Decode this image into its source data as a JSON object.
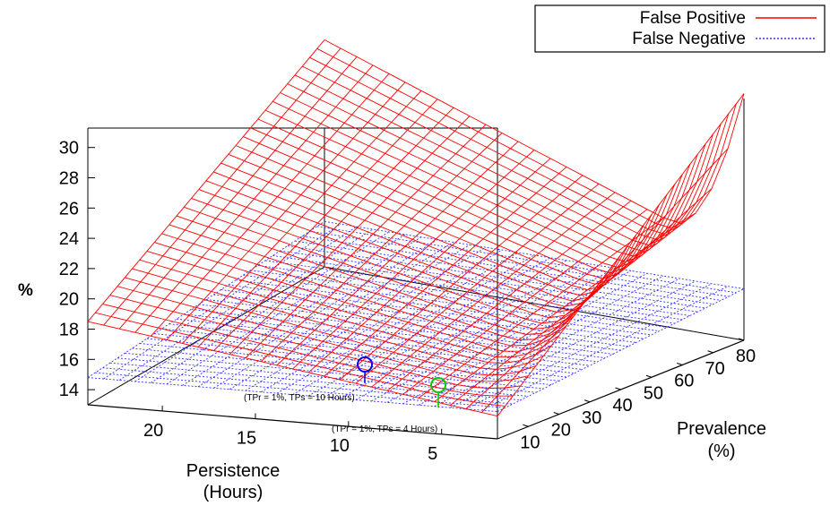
{
  "chart_data": {
    "type": "surface",
    "z_label": "%",
    "x_axis": {
      "label_line1": "Persistence",
      "label_line2": "(Hours)",
      "ticks": [
        20,
        15,
        10,
        5
      ],
      "range": [
        2,
        24
      ]
    },
    "y_axis": {
      "label_line1": "Prevalence",
      "label_line2": "(%)",
      "ticks": [
        10,
        20,
        30,
        40,
        50,
        60,
        70,
        80
      ],
      "range": [
        0,
        80
      ]
    },
    "z_axis": {
      "ticks": [
        14,
        16,
        18,
        20,
        22,
        24,
        26,
        28,
        30
      ],
      "range": [
        13,
        31
      ]
    },
    "series": [
      {
        "name": "False Positive",
        "color": "#ff0000",
        "line_style": "solid",
        "description_points": [
          {
            "persistence": 24,
            "prevalence": 0,
            "value": 18.5
          },
          {
            "persistence": 24,
            "prevalence": 80,
            "value": 28.0
          },
          {
            "persistence": 2,
            "prevalence": 0,
            "value": 14.5
          },
          {
            "persistence": 2,
            "prevalence": 80,
            "value": 31.0
          }
        ]
      },
      {
        "name": "False Negative",
        "color": "#3333ff",
        "line_style": "dotted",
        "description_points": [
          {
            "persistence": 24,
            "prevalence": 0,
            "value": 14.8
          },
          {
            "persistence": 2,
            "prevalence": 80,
            "value": 17.0
          }
        ]
      }
    ],
    "annotations": [
      {
        "text": "(TPr = 1%, TPs = 10 Hours)",
        "color": "#0000ff"
      },
      {
        "text": "(TPr = 1%, TPs = 4 Hours)",
        "color": "#00cc00"
      }
    ],
    "legend_position": "top-right",
    "grid": false
  }
}
